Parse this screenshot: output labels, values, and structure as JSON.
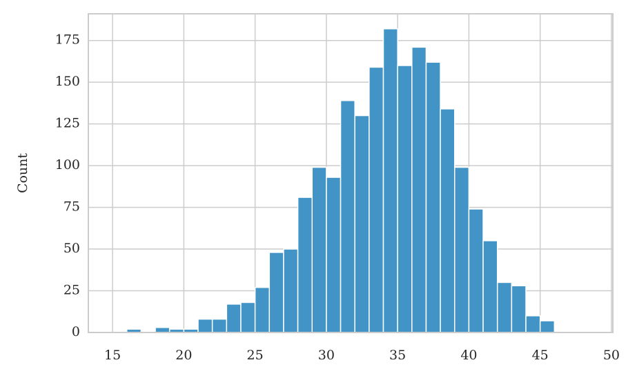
{
  "chart_data": {
    "type": "histogram",
    "y_label": "Count",
    "bins": [
      15,
      16,
      17,
      18,
      19,
      20,
      21,
      22,
      23,
      24,
      25,
      26,
      27,
      28,
      29,
      30,
      31,
      32,
      33,
      34,
      35,
      36,
      37,
      38,
      39,
      40,
      41,
      42,
      43,
      44,
      45,
      46,
      47,
      48
    ],
    "values": [
      0,
      2,
      0,
      3,
      2,
      2,
      8,
      8,
      17,
      18,
      27,
      48,
      50,
      81,
      99,
      93,
      139,
      130,
      159,
      182,
      160,
      171,
      162,
      134,
      99,
      74,
      55,
      30,
      28,
      10,
      7,
      0,
      0
    ],
    "color": "#4394c6",
    "xlim": [
      13.3,
      50.1
    ],
    "xticks": [
      15,
      20,
      25,
      30,
      35,
      40,
      45,
      50
    ],
    "ylim": [
      0,
      191
    ],
    "yticks": [
      0,
      25,
      50,
      75,
      100,
      125,
      150,
      175
    ],
    "grid": true
  }
}
